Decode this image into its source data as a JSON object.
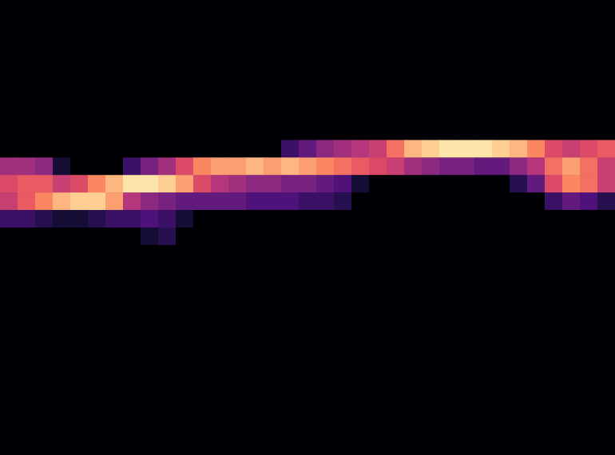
{
  "chart_data": {
    "type": "heatmap",
    "color": "magma",
    "tick_labels": false,
    "cells": [
      [
        0,
        0,
        0,
        0,
        0,
        0,
        0,
        0,
        0,
        0,
        0,
        0,
        0,
        0,
        0,
        0,
        0,
        0,
        0,
        0,
        0,
        0,
        0,
        0,
        0,
        0,
        0,
        0,
        0,
        0,
        0,
        0,
        0,
        0,
        0
      ],
      [
        0,
        0,
        0,
        0,
        0,
        0,
        0,
        0,
        0,
        0,
        0,
        0,
        0,
        0,
        0,
        0,
        0,
        0,
        0,
        0,
        0,
        0,
        0,
        0,
        0,
        0,
        0,
        0,
        0,
        0,
        0,
        0,
        0,
        0,
        0
      ],
      [
        0,
        0,
        0,
        0,
        0,
        0,
        0,
        0,
        0,
        0,
        0,
        0,
        0,
        0,
        0,
        0,
        0,
        0,
        0,
        0,
        0,
        0,
        0,
        0,
        0,
        0,
        0,
        0,
        0,
        0,
        0,
        0,
        0,
        0,
        0
      ],
      [
        0,
        0,
        0,
        0,
        0,
        0,
        0,
        0,
        0,
        0,
        0,
        0,
        0,
        0,
        0,
        0,
        0,
        0,
        0,
        0,
        0,
        0,
        0,
        0,
        0,
        0,
        0,
        0,
        0,
        0,
        0,
        0,
        0,
        0,
        0
      ],
      [
        0,
        0,
        0,
        0,
        0,
        0,
        0,
        0,
        0,
        0,
        0,
        0,
        0,
        0,
        0,
        0,
        0,
        0,
        0,
        0,
        0,
        0,
        0,
        0,
        0,
        0,
        0,
        0,
        0,
        0,
        0,
        0,
        0,
        0,
        0
      ],
      [
        0,
        0,
        0,
        0,
        0,
        0,
        0,
        0,
        0,
        0,
        0,
        0,
        0,
        0,
        0,
        0,
        0,
        0,
        0,
        0,
        0,
        0,
        0,
        0,
        0,
        0,
        0,
        0,
        0,
        0,
        0,
        0,
        0,
        0,
        0
      ],
      [
        0,
        0,
        0,
        0,
        0,
        0,
        0,
        0,
        0,
        0,
        0,
        0,
        0,
        0,
        0,
        0,
        0,
        0,
        0,
        0,
        0,
        0,
        0,
        0,
        0,
        0,
        0,
        0,
        0,
        0,
        0,
        0,
        0,
        0,
        0
      ],
      [
        0,
        0,
        0,
        0,
        0,
        0,
        0,
        0,
        0,
        0,
        0,
        0,
        0,
        0,
        0,
        0,
        0,
        0,
        0,
        0,
        0,
        0,
        0,
        0,
        0,
        0,
        0,
        0,
        0,
        0,
        0,
        0,
        0,
        0,
        0
      ],
      [
        0,
        0,
        0,
        0,
        0,
        0,
        0,
        0,
        0,
        0,
        0,
        0,
        0,
        0,
        0,
        0,
        0.2,
        0.3,
        0.4,
        0.45,
        0.5,
        0.55,
        0.7,
        0.85,
        0.9,
        0.95,
        0.95,
        0.95,
        0.9,
        0.85,
        0.75,
        0.6,
        0.55,
        0.6,
        0.65
      ],
      [
        0.45,
        0.45,
        0.4,
        0.1,
        0,
        0,
        0,
        0.2,
        0.35,
        0.45,
        0.6,
        0.75,
        0.8,
        0.8,
        0.85,
        0.8,
        0.85,
        0.8,
        0.75,
        0.7,
        0.65,
        0.6,
        0.55,
        0.45,
        0.4,
        0.35,
        0.35,
        0.3,
        0.3,
        0.4,
        0.5,
        0.7,
        0.8,
        0.7,
        0.55
      ],
      [
        0.6,
        0.65,
        0.65,
        0.55,
        0.6,
        0.75,
        0.85,
        0.95,
        0.95,
        0.9,
        0.8,
        0.6,
        0.5,
        0.45,
        0.4,
        0.4,
        0.35,
        0.35,
        0.3,
        0.25,
        0.1,
        0,
        0,
        0,
        0,
        0,
        0,
        0,
        0,
        0.15,
        0.3,
        0.6,
        0.75,
        0.7,
        0.55
      ],
      [
        0.55,
        0.65,
        0.75,
        0.85,
        0.9,
        0.9,
        0.8,
        0.5,
        0.4,
        0.35,
        0.3,
        0.3,
        0.3,
        0.3,
        0.25,
        0.25,
        0.25,
        0.2,
        0.2,
        0.15,
        0,
        0,
        0,
        0,
        0,
        0,
        0,
        0,
        0,
        0,
        0,
        0.2,
        0.3,
        0.25,
        0.15
      ],
      [
        0.2,
        0.2,
        0.15,
        0.1,
        0.1,
        0.15,
        0.2,
        0.2,
        0.25,
        0.2,
        0.1,
        0,
        0,
        0,
        0,
        0,
        0,
        0,
        0,
        0,
        0,
        0,
        0,
        0,
        0,
        0,
        0,
        0,
        0,
        0,
        0,
        0,
        0,
        0,
        0
      ],
      [
        0,
        0,
        0,
        0,
        0,
        0,
        0,
        0,
        0.1,
        0.15,
        0,
        0,
        0,
        0,
        0,
        0,
        0,
        0,
        0,
        0,
        0,
        0,
        0,
        0,
        0,
        0,
        0,
        0,
        0,
        0,
        0,
        0,
        0,
        0,
        0
      ],
      [
        0,
        0,
        0,
        0,
        0,
        0,
        0,
        0,
        0,
        0,
        0,
        0,
        0,
        0,
        0,
        0,
        0,
        0,
        0,
        0,
        0,
        0,
        0,
        0,
        0,
        0,
        0,
        0,
        0,
        0,
        0,
        0,
        0,
        0,
        0
      ],
      [
        0,
        0,
        0,
        0,
        0,
        0,
        0,
        0,
        0,
        0,
        0,
        0,
        0,
        0,
        0,
        0,
        0,
        0,
        0,
        0,
        0,
        0,
        0,
        0,
        0,
        0,
        0,
        0,
        0,
        0,
        0,
        0,
        0,
        0,
        0
      ],
      [
        0,
        0,
        0,
        0,
        0,
        0,
        0,
        0,
        0,
        0,
        0,
        0,
        0,
        0,
        0,
        0,
        0,
        0,
        0,
        0,
        0,
        0,
        0,
        0,
        0,
        0,
        0,
        0,
        0,
        0,
        0,
        0,
        0,
        0,
        0
      ],
      [
        0,
        0,
        0,
        0,
        0,
        0,
        0,
        0,
        0,
        0,
        0,
        0,
        0,
        0,
        0,
        0,
        0,
        0,
        0,
        0,
        0,
        0,
        0,
        0,
        0,
        0,
        0,
        0,
        0,
        0,
        0,
        0,
        0,
        0,
        0
      ],
      [
        0,
        0,
        0,
        0,
        0,
        0,
        0,
        0,
        0,
        0,
        0,
        0,
        0,
        0,
        0,
        0,
        0,
        0,
        0,
        0,
        0,
        0,
        0,
        0,
        0,
        0,
        0,
        0,
        0,
        0,
        0,
        0,
        0,
        0,
        0
      ],
      [
        0,
        0,
        0,
        0,
        0,
        0,
        0,
        0,
        0,
        0,
        0,
        0,
        0,
        0,
        0,
        0,
        0,
        0,
        0,
        0,
        0,
        0,
        0,
        0,
        0,
        0,
        0,
        0,
        0,
        0,
        0,
        0,
        0,
        0,
        0
      ],
      [
        0,
        0,
        0,
        0,
        0,
        0,
        0,
        0,
        0,
        0,
        0,
        0,
        0,
        0,
        0,
        0,
        0,
        0,
        0,
        0,
        0,
        0,
        0,
        0,
        0,
        0,
        0,
        0,
        0,
        0,
        0,
        0,
        0,
        0,
        0
      ],
      [
        0,
        0,
        0,
        0,
        0,
        0,
        0,
        0,
        0,
        0,
        0,
        0,
        0,
        0,
        0,
        0,
        0,
        0,
        0,
        0,
        0,
        0,
        0,
        0,
        0,
        0,
        0,
        0,
        0,
        0,
        0,
        0,
        0,
        0,
        0
      ],
      [
        0,
        0,
        0,
        0,
        0,
        0,
        0,
        0,
        0,
        0,
        0,
        0,
        0,
        0,
        0,
        0,
        0,
        0,
        0,
        0,
        0,
        0,
        0,
        0,
        0,
        0,
        0,
        0,
        0,
        0,
        0,
        0,
        0,
        0,
        0
      ],
      [
        0,
        0,
        0,
        0,
        0,
        0,
        0,
        0,
        0,
        0,
        0,
        0,
        0,
        0,
        0,
        0,
        0,
        0,
        0,
        0,
        0,
        0,
        0,
        0,
        0,
        0,
        0,
        0,
        0,
        0,
        0,
        0,
        0,
        0,
        0
      ],
      [
        0,
        0,
        0,
        0,
        0,
        0,
        0,
        0,
        0,
        0,
        0,
        0,
        0,
        0,
        0,
        0,
        0,
        0,
        0,
        0,
        0,
        0,
        0,
        0,
        0,
        0,
        0,
        0,
        0,
        0,
        0,
        0,
        0,
        0,
        0
      ],
      [
        0,
        0,
        0,
        0,
        0,
        0,
        0,
        0,
        0,
        0,
        0,
        0,
        0,
        0,
        0,
        0,
        0,
        0,
        0,
        0,
        0,
        0,
        0,
        0,
        0,
        0,
        0,
        0,
        0,
        0,
        0,
        0,
        0,
        0,
        0
      ]
    ]
  }
}
